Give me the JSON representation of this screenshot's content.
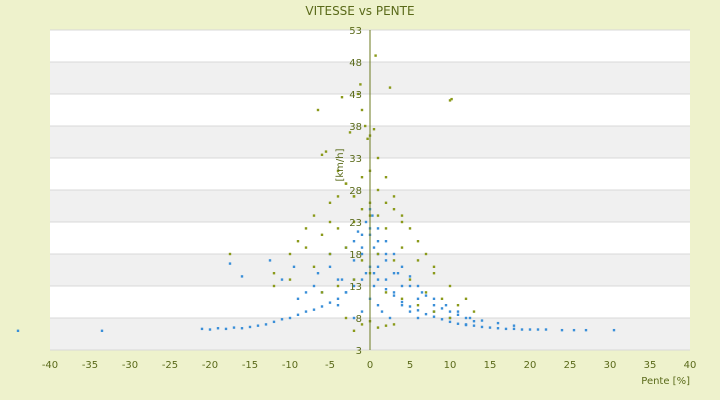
{
  "chart_data": {
    "type": "scatter",
    "title": "VITESSE vs PENTE",
    "xlabel": "Pente [%]",
    "ylabel": "[km/h]",
    "xlim": [
      -40,
      40
    ],
    "ylim": [
      3,
      53
    ],
    "x_ticks": [
      "-40",
      "-35",
      "-30",
      "-25",
      "-20",
      "-15",
      "-10",
      "-5",
      "0",
      "5",
      "10",
      "15",
      "20",
      "25",
      "30",
      "35",
      "40"
    ],
    "y_ticks": [
      "53",
      "48",
      "43",
      "38",
      "33",
      "28",
      "23",
      "18",
      "13",
      "8",
      "3"
    ],
    "grid": "horizontal alternating bands",
    "colors": {
      "series_1": "#3a8fd8",
      "series_2": "#8a9a1a",
      "background": "#eef2cc",
      "plot": "#ffffff",
      "band": "#f0f0f0"
    },
    "series": [
      {
        "color": "#3a8fd8",
        "x": [
          -44,
          -33.5,
          -21,
          -20,
          -19,
          -18,
          -17,
          -16,
          -15,
          -14,
          -13,
          -12,
          -11,
          -10,
          -9,
          -8,
          -7,
          -6,
          -5,
          -4,
          -3,
          -2,
          -1,
          -0.5,
          0,
          0.5,
          1,
          2,
          3,
          4,
          5,
          6,
          7,
          8,
          9,
          10,
          11,
          12,
          13,
          14,
          15,
          16,
          17,
          18,
          19,
          20,
          21,
          22,
          24,
          25.5,
          27,
          30.5,
          -17.5,
          -16,
          -12.5,
          -11,
          -9.5,
          -8,
          -6.5,
          -5,
          -3.5,
          -2,
          -1,
          0,
          1,
          2,
          3.5,
          5,
          6.5,
          8,
          9.5,
          11,
          12.5,
          14,
          16,
          18,
          -9,
          -7,
          -5,
          -3,
          -1.5,
          -0.5,
          0.3,
          1,
          2,
          3,
          4,
          5,
          6,
          7,
          8,
          9,
          10,
          11,
          12,
          13,
          -6,
          -4,
          -2,
          -1,
          0,
          1,
          2,
          3,
          4,
          6,
          8,
          10,
          12,
          -4,
          -3,
          -2,
          -1,
          0,
          0.5,
          1,
          2,
          3,
          4,
          5,
          6,
          -2,
          -1,
          0,
          0.5,
          1,
          1.5,
          2.5
        ],
        "y": [
          6,
          6,
          6.3,
          6.2,
          6.4,
          6.3,
          6.5,
          6.4,
          6.6,
          6.8,
          7,
          7.4,
          7.8,
          8,
          8.5,
          9,
          9.3,
          9.8,
          10.4,
          11,
          12,
          13,
          14,
          15,
          16,
          15,
          14,
          12.5,
          11.5,
          10.5,
          9.8,
          9.2,
          8.6,
          8.2,
          7.8,
          7.4,
          7.1,
          6.9,
          6.8,
          6.6,
          6.5,
          6.4,
          6.3,
          6.3,
          6.2,
          6.2,
          6.2,
          6.2,
          6.1,
          6.1,
          6.1,
          6.1,
          16.5,
          14.5,
          17,
          14,
          16,
          12,
          15,
          18,
          14,
          20,
          19,
          21,
          18,
          17,
          15,
          13,
          12,
          11,
          10,
          9,
          8,
          7.6,
          7.2,
          6.8,
          11,
          13,
          16,
          19,
          21.5,
          23,
          24,
          22,
          20,
          18,
          16,
          14.5,
          13,
          11.5,
          10,
          9.5,
          9,
          8.5,
          8,
          7.5,
          12,
          14,
          17,
          21,
          25,
          20,
          18,
          15,
          13,
          11,
          9,
          8,
          7,
          10,
          12,
          14,
          18,
          22,
          19,
          16,
          14,
          12,
          10,
          9,
          8,
          8,
          9,
          11,
          13,
          10,
          9,
          8
        ]
      },
      {
        "color": "#8a9a1a",
        "x": [
          -6.5,
          -6,
          -5.5,
          -3.5,
          -2.5,
          -1.5,
          -1.2,
          -1,
          -0.6,
          -0.3,
          0,
          0.5,
          0.7,
          1,
          2.5,
          10,
          10.2,
          -4,
          -3,
          -2,
          -1,
          0,
          1,
          2,
          3,
          4,
          -8,
          -7,
          -5,
          -5,
          -4,
          -3,
          -2,
          -1,
          0,
          1,
          2,
          3,
          4,
          5,
          6,
          7,
          8,
          -10,
          -9,
          -8,
          -6,
          -4,
          -2,
          0,
          2,
          4,
          6,
          8,
          10,
          12,
          -12,
          -10,
          -7,
          -5,
          -3,
          -1,
          1,
          3,
          5,
          7,
          9,
          11,
          -6,
          -4,
          -2,
          0,
          2,
          4,
          6,
          8,
          10,
          -3,
          -1,
          1,
          3,
          -2,
          0,
          2,
          -17.5,
          -12,
          13
        ],
        "y": [
          40.5,
          33.5,
          34,
          42.5,
          37,
          43,
          44.5,
          40.5,
          38,
          36,
          36.5,
          37.5,
          49,
          33,
          44,
          42,
          42.2,
          31,
          29,
          27,
          30,
          31,
          28,
          30,
          27,
          24,
          22,
          24,
          26,
          23,
          27,
          29,
          27,
          25,
          26,
          24,
          26,
          25,
          23,
          22,
          20,
          18,
          16,
          18,
          20,
          19,
          21,
          22,
          23,
          24,
          22,
          19,
          17,
          15,
          13,
          11,
          15,
          14,
          16,
          18,
          19,
          17,
          18,
          17,
          14,
          12,
          11,
          10,
          12,
          13,
          14,
          15,
          12,
          11,
          10,
          9,
          8,
          8,
          7,
          6.5,
          7,
          6,
          7.5,
          6.8,
          18,
          13,
          9
        ]
      }
    ]
  }
}
